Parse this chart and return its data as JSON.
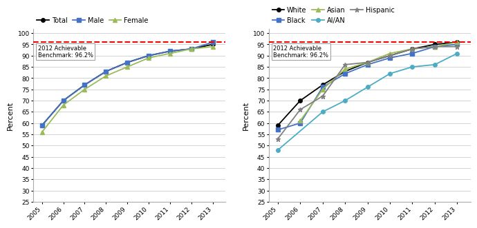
{
  "years": [
    2005,
    2006,
    2007,
    2008,
    2009,
    2010,
    2011,
    2012,
    2013
  ],
  "chart1": {
    "total": [
      59,
      70,
      77,
      83,
      87,
      90,
      92,
      93,
      95
    ],
    "male": [
      59,
      70,
      77,
      83,
      87,
      90,
      92,
      93,
      96
    ],
    "female": [
      56,
      68,
      75,
      81,
      85,
      89,
      91,
      93,
      94
    ]
  },
  "chart2": {
    "white": [
      59,
      70,
      77,
      83,
      87,
      90,
      93,
      95,
      96
    ],
    "black": [
      57,
      60,
      76,
      82,
      86,
      89,
      91,
      94,
      95
    ],
    "asian": [
      null,
      61,
      75,
      84,
      87,
      91,
      93,
      94,
      96
    ],
    "aian": [
      48,
      null,
      65,
      70,
      76,
      82,
      85,
      86,
      91
    ],
    "hispanic": [
      53,
      66,
      72,
      86,
      87,
      90,
      93,
      94,
      94
    ]
  },
  "benchmark": 96.2,
  "benchmark_label": "2012 Achievable\nBenchmark: 96.2%",
  "colors": {
    "total": "#000000",
    "male": "#4472C4",
    "female": "#9BBB59",
    "white": "#000000",
    "black": "#4472C4",
    "asian": "#9BBB59",
    "aian": "#4BACC6",
    "hispanic": "#808080"
  },
  "ylabel": "Percent",
  "ylim": [
    25,
    102
  ],
  "yticks": [
    25,
    30,
    35,
    40,
    45,
    50,
    55,
    60,
    65,
    70,
    75,
    80,
    85,
    90,
    95,
    100
  ]
}
